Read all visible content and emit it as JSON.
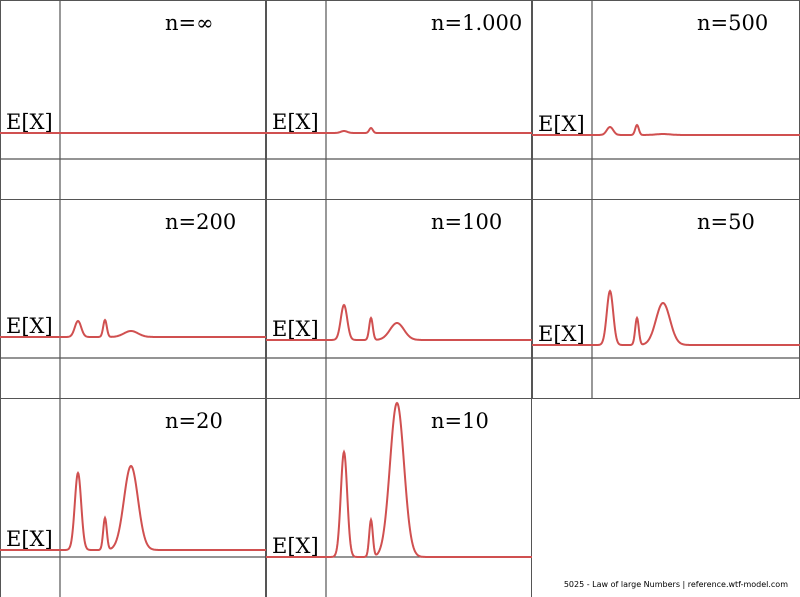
{
  "chart_data": [
    {
      "type": "line",
      "title": "n=∞",
      "ylabel": "E[X]",
      "peaks": [
        0,
        0,
        0
      ],
      "offset": 0
    },
    {
      "type": "line",
      "title": "n=1.000",
      "ylabel": "E[X]",
      "peaks": [
        2,
        5,
        0
      ],
      "offset": 0
    },
    {
      "type": "line",
      "title": "n=500",
      "ylabel": "E[X]",
      "peaks": [
        8,
        10,
        1
      ],
      "offset": 2
    },
    {
      "type": "line",
      "title": "n=200",
      "ylabel": "E[X]",
      "peaks": [
        16,
        17,
        6
      ],
      "offset": 5
    },
    {
      "type": "line",
      "title": "n=100",
      "ylabel": "E[X]",
      "peaks": [
        35,
        22,
        17
      ],
      "offset": 8
    },
    {
      "type": "line",
      "title": "n=50",
      "ylabel": "E[X]",
      "peaks": [
        54,
        27,
        42
      ],
      "offset": 13
    },
    {
      "type": "line",
      "title": "n=20",
      "ylabel": "E[X]",
      "peaks": [
        77,
        32,
        84
      ],
      "offset": 19
    },
    {
      "type": "line",
      "title": "n=10",
      "ylabel": "E[X]",
      "peaks": [
        105,
        37,
        154
      ],
      "offset": 26
    }
  ],
  "colors": {
    "curve": "#d05050",
    "axis": "#555555",
    "grid": "#555555"
  },
  "footer": "5025 - Law of large Numbers | reference.wtf-model.com"
}
